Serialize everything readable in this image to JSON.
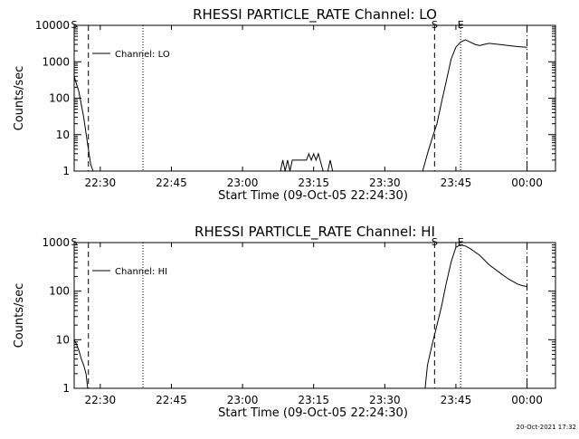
{
  "chart_data": [
    {
      "type": "line",
      "title": "RHESSI PARTICLE_RATE Channel: LO",
      "xlabel": "Start Time (09-Oct-05 22:24:30)",
      "ylabel": "Counts/sec",
      "y_scale": "log",
      "ylim": [
        1,
        10000
      ],
      "xlim": [
        "22:24:30",
        "00:06:00"
      ],
      "x_ticks": [
        "22:30",
        "22:45",
        "23:00",
        "23:15",
        "23:30",
        "23:45",
        "00:00"
      ],
      "y_ticks": [
        "1",
        "10",
        "100",
        "1000",
        "10000"
      ],
      "grid": false,
      "legend": {
        "position": "top-left",
        "entries": [
          "Channel: LO"
        ]
      },
      "markers": [
        {
          "label": "S",
          "time": "22:24:30",
          "style": "dashed"
        },
        {
          "label": "",
          "time": "22:27:30",
          "style": "dashed"
        },
        {
          "label": "",
          "time": "22:39:00",
          "style": "dotted"
        },
        {
          "label": "S",
          "time": "23:40:30",
          "style": "dashed"
        },
        {
          "label": "E",
          "time": "23:46:00",
          "style": "dotted"
        },
        {
          "label": "",
          "time": "00:00:00",
          "style": "dash-dot"
        }
      ],
      "series": [
        {
          "x": [
            "22:24:30",
            "22:25:30",
            "22:26:30",
            "22:27:30",
            "22:28:00",
            "22:28:30",
            "22:29:00",
            "23:08:00",
            "23:08:30",
            "23:09:00",
            "23:09:30",
            "23:10:00",
            "23:10:30",
            "23:13:00",
            "23:13:30",
            "23:14:00",
            "23:14:30",
            "23:15:00",
            "23:15:30",
            "23:16:00",
            "23:17:00",
            "23:18:00",
            "23:18:30",
            "23:19:00",
            "23:38:00",
            "23:39:00",
            "23:40:00",
            "23:41:00",
            "23:42:00",
            "23:43:00",
            "23:44:00",
            "23:45:00",
            "23:46:00",
            "23:47:00",
            "23:48:00",
            "23:49:00",
            "23:50:00",
            "23:51:00",
            "23:52:00",
            "23:53:00",
            "23:54:00",
            "23:55:00",
            "23:56:00",
            "23:57:00",
            "23:58:00",
            "23:59:00",
            "00:00:00"
          ],
          "values": [
            400,
            150,
            30,
            4,
            1.5,
            1,
            1,
            1,
            2,
            1,
            2,
            1,
            2,
            2,
            2,
            3,
            2,
            3,
            2,
            3,
            1,
            1,
            2,
            1,
            1,
            3,
            8,
            20,
            80,
            300,
            1200,
            2500,
            3500,
            4000,
            3500,
            3000,
            2800,
            3000,
            3200,
            3100,
            3000,
            2900,
            2800,
            2700,
            2600,
            2550,
            2500
          ]
        }
      ]
    },
    {
      "type": "line",
      "title": "RHESSI PARTICLE_RATE Channel: HI",
      "xlabel": "Start Time (09-Oct-05 22:24:30)",
      "ylabel": "Counts/sec",
      "y_scale": "log",
      "ylim": [
        1,
        1000
      ],
      "xlim": [
        "22:24:30",
        "00:06:00"
      ],
      "x_ticks": [
        "22:30",
        "22:45",
        "23:00",
        "23:15",
        "23:30",
        "23:45",
        "00:00"
      ],
      "y_ticks": [
        "1",
        "10",
        "100",
        "1000"
      ],
      "grid": false,
      "legend": {
        "position": "top-left",
        "entries": [
          "Channel: HI"
        ]
      },
      "markers": [
        {
          "label": "S",
          "time": "22:24:30",
          "style": "dashed"
        },
        {
          "label": "",
          "time": "22:27:30",
          "style": "dashed"
        },
        {
          "label": "",
          "time": "22:39:00",
          "style": "dotted"
        },
        {
          "label": "S",
          "time": "23:40:30",
          "style": "dashed"
        },
        {
          "label": "E",
          "time": "23:46:00",
          "style": "dotted"
        },
        {
          "label": "",
          "time": "00:00:00",
          "style": "dash-dot"
        }
      ],
      "series": [
        {
          "x": [
            "22:24:30",
            "22:25:00",
            "22:25:30",
            "22:26:00",
            "22:26:30",
            "22:27:00",
            "22:27:20",
            "23:38:30",
            "23:39:00",
            "23:40:00",
            "23:41:00",
            "23:42:00",
            "23:43:00",
            "23:44:00",
            "23:45:00",
            "23:46:00",
            "23:47:00",
            "23:48:00",
            "23:50:00",
            "23:52:00",
            "23:54:00",
            "23:56:00",
            "23:58:00",
            "23:59:00",
            "00:00:00"
          ],
          "values": [
            10,
            8,
            6,
            4,
            3,
            2,
            1,
            1,
            3,
            8,
            20,
            50,
            150,
            400,
            800,
            900,
            850,
            750,
            550,
            350,
            250,
            180,
            140,
            130,
            125
          ]
        }
      ]
    }
  ],
  "timestamp": "20-Oct-2021 17:32"
}
